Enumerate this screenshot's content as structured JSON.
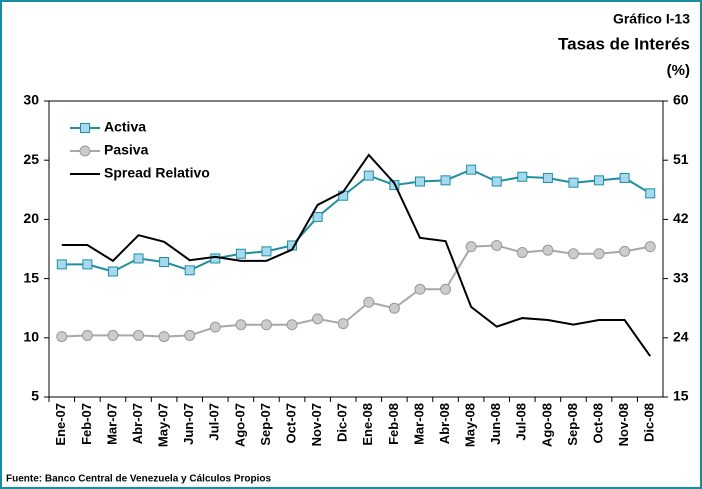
{
  "chart_data": {
    "type": "line",
    "figure_label": "Gráfico I-13",
    "title": "Tasas de Interés",
    "unit_label": "(%)",
    "source": "Fuente: Banco Central de Venezuela y Cálculos Propios",
    "categories": [
      "Ene-07",
      "Feb-07",
      "Mar-07",
      "Abr-07",
      "May-07",
      "Jun-07",
      "Jul-07",
      "Ago-07",
      "Sep-07",
      "Oct-07",
      "Nov-07",
      "Dic-07",
      "Ene-08",
      "Feb-08",
      "Mar-08",
      "Abr-08",
      "May-08",
      "Jun-08",
      "Jul-08",
      "Ago-08",
      "Sep-08",
      "Oct-08",
      "Nov-08",
      "Dic-08"
    ],
    "series": [
      {
        "name": "Activa",
        "color": "#1f8fa0",
        "marker": "square",
        "marker_color": "#a6d8f0",
        "axis": "y",
        "values": [
          16.2,
          16.2,
          15.6,
          16.7,
          16.4,
          15.7,
          16.7,
          17.1,
          17.3,
          17.8,
          20.2,
          22.0,
          23.7,
          22.9,
          23.2,
          23.3,
          24.2,
          23.2,
          23.6,
          23.5,
          23.1,
          23.3,
          23.5,
          22.2
        ]
      },
      {
        "name": "Pasiva",
        "color": "#a8a8a8",
        "marker": "circle",
        "marker_color": "#cccccc",
        "axis": "y",
        "values": [
          10.1,
          10.2,
          10.2,
          10.2,
          10.1,
          10.2,
          10.9,
          11.1,
          11.1,
          11.1,
          11.6,
          11.2,
          13.0,
          12.5,
          14.1,
          14.1,
          17.7,
          17.8,
          17.2,
          17.4,
          17.1,
          17.1,
          17.3,
          17.7
        ]
      },
      {
        "name": "Spread Relativo",
        "color": "#000000",
        "marker": "none",
        "axis": "y2",
        "values": [
          38.1,
          38.1,
          35.7,
          39.6,
          38.6,
          35.8,
          36.3,
          35.7,
          35.7,
          37.4,
          44.2,
          46.2,
          51.8,
          47.5,
          39.2,
          38.7,
          28.7,
          25.7,
          27.0,
          26.7,
          26.0,
          26.7,
          26.7,
          21.2
        ]
      }
    ],
    "ylim": [
      5,
      30
    ],
    "yticks": [
      5,
      10,
      15,
      20,
      25,
      30
    ],
    "y2lim": [
      15,
      60
    ],
    "y2ticks": [
      15,
      24,
      33,
      42,
      51,
      60
    ],
    "grid": false,
    "legend": "upper left"
  }
}
